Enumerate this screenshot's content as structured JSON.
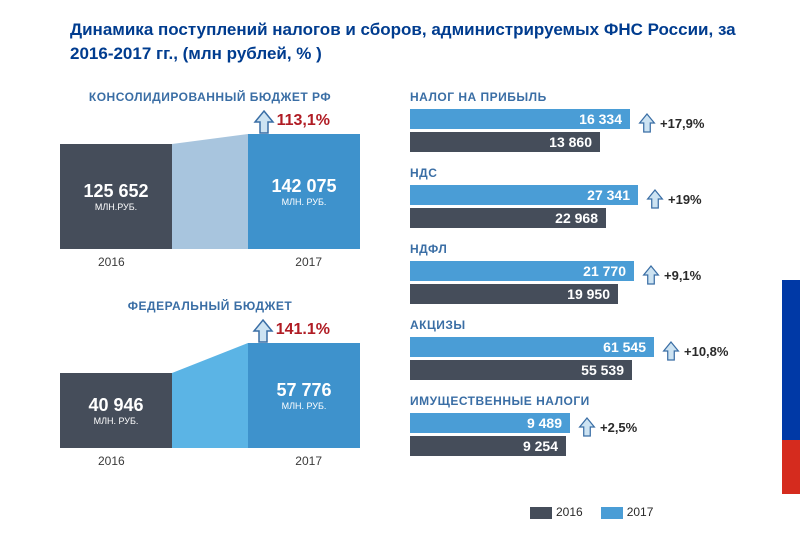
{
  "title": "Динамика поступлений налогов и сборов, администрируемых ФНС России, за  2016-2017 гг., (млн рублей, % )",
  "colors": {
    "title": "#003c8f",
    "subhead": "#3a6ea5",
    "bar2016": "#454d5a",
    "bar2017": "#3e92cc",
    "bar2017_alt": "#4a9dd6",
    "connector_light": "#a8c5de",
    "connector_bright": "#5bb4e5",
    "growth_pct": "#b01c24",
    "arrow_stroke": "#3a6ea5",
    "arrow_fill": "#cde3f2",
    "legend_text": "#2a2a2a",
    "flag_blue": "#0039a6",
    "flag_red": "#d52b1e"
  },
  "budgets": [
    {
      "title": "КОНСОЛИДИРОВАННЫЙ БЮДЖЕТ РФ",
      "growth": "113,1%",
      "val2016": "125 652",
      "val2017": "142 075",
      "unit2016": "млн.руб.",
      "unit2017": "МЛН. РУБ.",
      "h2016": 105,
      "h2017": 115,
      "w2016": 112,
      "w2017": 112,
      "connector_color": "#a8c5de"
    },
    {
      "title": "ФЕДЕРАЛЬНЫЙ  БЮДЖЕТ",
      "growth": "141.1%",
      "val2016": "40 946",
      "val2017": "57 776",
      "unit2016": "МЛН. РУБ.",
      "unit2017": "МЛН. РУБ.",
      "h2016": 75,
      "h2017": 105,
      "w2016": 112,
      "w2017": 112,
      "connector_color": "#5bb4e5"
    }
  ],
  "year_labels": {
    "y2016": "2016",
    "y2017": "2017"
  },
  "taxes": [
    {
      "title": "НАЛОГ НА ПРИБЫЛЬ",
      "v2017": "16 334",
      "v2016": "13 860",
      "w2017": 220,
      "w2016": 190,
      "growth": "+17,9%"
    },
    {
      "title": "НДС",
      "v2017": "27 341",
      "v2016": "22 968",
      "w2017": 228,
      "w2016": 196,
      "growth": "+19%"
    },
    {
      "title": "НДФЛ",
      "v2017": "21 770",
      "v2016": "19 950",
      "w2017": 224,
      "w2016": 208,
      "growth": "+9,1%"
    },
    {
      "title": "АКЦИЗЫ",
      "v2017": "61 545",
      "v2016": "55 539",
      "w2017": 244,
      "w2016": 222,
      "growth": "+10,8%"
    },
    {
      "title": "ИМУЩЕСТВЕННЫЕ НАЛОГИ",
      "v2017": "9 489",
      "v2016": "9 254",
      "w2017": 160,
      "w2016": 156,
      "growth": "+2,5%"
    }
  ],
  "legend": {
    "y2016": "2016",
    "y2017": "2017"
  }
}
